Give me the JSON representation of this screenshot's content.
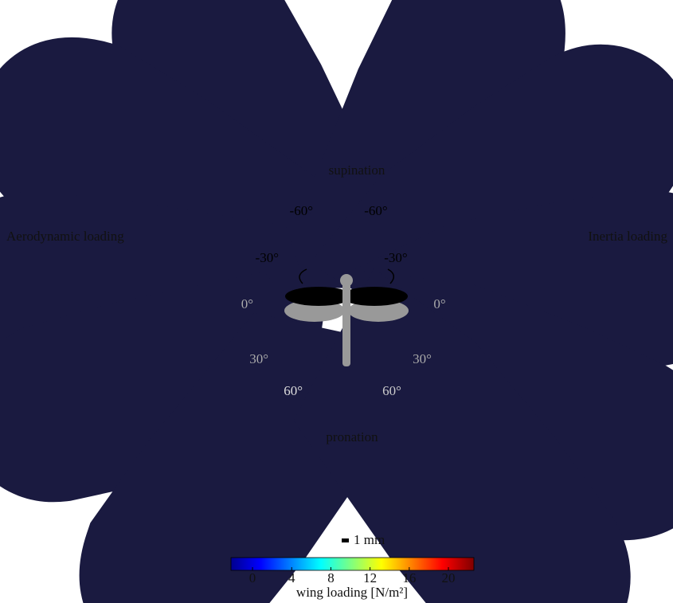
{
  "labels": {
    "left": "Aerodynamic loading",
    "right": "Inertia loading",
    "top": "supination",
    "bottom": "pronation",
    "scale": "1 mm"
  },
  "left_angles": [
    "-60°",
    "-30°",
    "0°",
    "30°",
    "60°"
  ],
  "right_angles": [
    "-60°",
    "-30°",
    "0°",
    "30°",
    "60°"
  ],
  "colorbar": {
    "title": "wing loading [N/m²]",
    "range": [
      -2.2,
      22.6
    ],
    "ticks": [
      0,
      4,
      8,
      12,
      16,
      20
    ]
  }
}
